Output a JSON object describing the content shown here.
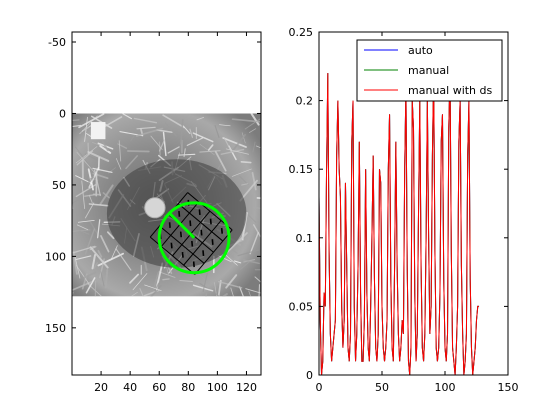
{
  "chart_data": [
    {
      "type": "image",
      "xlim": [
        0,
        130
      ],
      "ylim": [
        -57,
        183
      ],
      "y_reversed": true,
      "xticks": [
        20,
        40,
        60,
        80,
        100,
        120
      ],
      "yticks": [
        -50,
        0,
        50,
        100,
        150
      ],
      "image_extent": {
        "x": [
          0,
          130
        ],
        "y": [
          0,
          128
        ]
      },
      "overlay": {
        "grid_center": [
          82,
          84
        ],
        "grid_size": 40,
        "grid_cells": 4,
        "grid_rotation_deg": 40,
        "circle_center": [
          84,
          87
        ],
        "circle_radius": 24,
        "circle_color": "#00ff00",
        "radius_line_angle_deg": 225
      }
    },
    {
      "type": "line",
      "xlim": [
        0,
        150
      ],
      "ylim": [
        0,
        0.25
      ],
      "xticks": [
        0,
        50,
        100,
        150
      ],
      "yticks": [
        0,
        0.05,
        0.1,
        0.15,
        0.2,
        0.25
      ],
      "ytick_labels": [
        "0",
        "0.05",
        "0.1",
        "0.15",
        "0.2",
        "0.25"
      ],
      "legend_position": "top-right",
      "x": [
        0,
        1,
        2,
        3,
        4,
        5,
        6,
        7,
        8,
        9,
        10,
        11,
        12,
        13,
        14,
        15,
        16,
        17,
        18,
        19,
        20,
        21,
        22,
        23,
        24,
        25,
        26,
        27,
        28,
        29,
        30,
        31,
        32,
        33,
        34,
        35,
        36,
        37,
        38,
        39,
        40,
        41,
        42,
        43,
        44,
        45,
        46,
        47,
        48,
        49,
        50,
        51,
        52,
        53,
        54,
        55,
        56,
        57,
        58,
        59,
        60,
        61,
        62,
        63,
        64,
        65,
        66,
        67,
        68,
        69,
        70,
        71,
        72,
        73,
        74,
        75,
        76,
        77,
        78,
        79,
        80,
        81,
        82,
        83,
        84,
        85,
        86,
        87,
        88,
        89,
        90,
        91,
        92,
        93,
        94,
        95,
        96,
        97,
        98,
        99,
        100,
        101,
        102,
        103,
        104,
        105,
        106,
        107,
        108,
        109,
        110,
        111,
        112,
        113,
        114,
        115,
        116,
        117,
        118,
        119,
        120,
        121,
        122,
        123,
        124,
        125,
        126,
        127
      ],
      "series": [
        {
          "name": "auto",
          "color": "#0000ff",
          "values": [
            0.13,
            0.04,
            0.0,
            0.01,
            0.06,
            0.05,
            0.15,
            0.22,
            0.09,
            0.03,
            0.01,
            0.02,
            0.03,
            0.04,
            0.16,
            0.2,
            0.15,
            0.13,
            0.05,
            0.02,
            0.04,
            0.14,
            0.08,
            0.02,
            0.01,
            0.03,
            0.17,
            0.2,
            0.05,
            0.01,
            0.03,
            0.08,
            0.17,
            0.06,
            0.01,
            0.01,
            0.04,
            0.15,
            0.06,
            0.02,
            0.01,
            0.05,
            0.1,
            0.16,
            0.07,
            0.02,
            0.01,
            0.03,
            0.15,
            0.14,
            0.05,
            0.02,
            0.01,
            0.02,
            0.04,
            0.15,
            0.19,
            0.07,
            0.02,
            0.01,
            0.08,
            0.17,
            0.08,
            0.03,
            0.01,
            0.02,
            0.04,
            0.03,
            0.15,
            0.21,
            0.08,
            0.01,
            0.0,
            0.02,
            0.2,
            0.18,
            0.06,
            0.01,
            0.03,
            0.12,
            0.2,
            0.08,
            0.02,
            0.01,
            0.03,
            0.1,
            0.2,
            0.1,
            0.03,
            0.05,
            0.16,
            0.22,
            0.09,
            0.02,
            0.01,
            0.02,
            0.06,
            0.17,
            0.19,
            0.07,
            0.02,
            0.01,
            0.03,
            0.18,
            0.22,
            0.09,
            0.02,
            0.01,
            0.0,
            0.02,
            0.05,
            0.17,
            0.2,
            0.08,
            0.03,
            0.0,
            0.01,
            0.03,
            0.16,
            0.2,
            0.07,
            0.02,
            0.0,
            0.01,
            0.02,
            0.04,
            0.05,
            0.05
          ]
        },
        {
          "name": "manual",
          "color": "#008000",
          "values": [
            0.13,
            0.04,
            0.0,
            0.01,
            0.06,
            0.05,
            0.15,
            0.22,
            0.09,
            0.03,
            0.01,
            0.02,
            0.03,
            0.04,
            0.16,
            0.2,
            0.15,
            0.13,
            0.05,
            0.02,
            0.04,
            0.14,
            0.08,
            0.02,
            0.01,
            0.03,
            0.17,
            0.2,
            0.05,
            0.01,
            0.03,
            0.08,
            0.17,
            0.06,
            0.01,
            0.01,
            0.04,
            0.15,
            0.06,
            0.02,
            0.01,
            0.05,
            0.1,
            0.16,
            0.07,
            0.02,
            0.01,
            0.03,
            0.15,
            0.14,
            0.05,
            0.02,
            0.01,
            0.02,
            0.04,
            0.15,
            0.19,
            0.07,
            0.02,
            0.01,
            0.08,
            0.17,
            0.08,
            0.03,
            0.01,
            0.02,
            0.04,
            0.03,
            0.15,
            0.21,
            0.08,
            0.01,
            0.0,
            0.02,
            0.2,
            0.18,
            0.06,
            0.01,
            0.03,
            0.12,
            0.2,
            0.08,
            0.02,
            0.01,
            0.03,
            0.1,
            0.2,
            0.1,
            0.03,
            0.05,
            0.16,
            0.22,
            0.09,
            0.02,
            0.01,
            0.02,
            0.06,
            0.17,
            0.19,
            0.07,
            0.02,
            0.01,
            0.03,
            0.18,
            0.22,
            0.09,
            0.02,
            0.01,
            0.0,
            0.02,
            0.05,
            0.17,
            0.2,
            0.08,
            0.03,
            0.0,
            0.01,
            0.03,
            0.16,
            0.2,
            0.07,
            0.02,
            0.0,
            0.01,
            0.02,
            0.04,
            0.05,
            0.05
          ]
        },
        {
          "name": "manual with ds",
          "color": "#ff0000",
          "values": [
            0.13,
            0.04,
            0.0,
            0.01,
            0.06,
            0.05,
            0.15,
            0.22,
            0.09,
            0.03,
            0.01,
            0.02,
            0.03,
            0.04,
            0.16,
            0.2,
            0.15,
            0.13,
            0.05,
            0.02,
            0.04,
            0.14,
            0.08,
            0.02,
            0.01,
            0.03,
            0.17,
            0.2,
            0.05,
            0.01,
            0.03,
            0.08,
            0.17,
            0.06,
            0.01,
            0.01,
            0.04,
            0.15,
            0.06,
            0.02,
            0.01,
            0.05,
            0.1,
            0.16,
            0.07,
            0.02,
            0.01,
            0.03,
            0.15,
            0.14,
            0.05,
            0.02,
            0.01,
            0.02,
            0.04,
            0.15,
            0.19,
            0.07,
            0.02,
            0.01,
            0.08,
            0.17,
            0.08,
            0.03,
            0.01,
            0.02,
            0.04,
            0.03,
            0.15,
            0.21,
            0.08,
            0.01,
            0.0,
            0.02,
            0.2,
            0.18,
            0.06,
            0.01,
            0.03,
            0.12,
            0.2,
            0.08,
            0.02,
            0.01,
            0.03,
            0.1,
            0.2,
            0.1,
            0.03,
            0.05,
            0.16,
            0.22,
            0.09,
            0.02,
            0.01,
            0.02,
            0.06,
            0.17,
            0.19,
            0.07,
            0.02,
            0.01,
            0.03,
            0.18,
            0.22,
            0.09,
            0.02,
            0.01,
            0.0,
            0.02,
            0.05,
            0.17,
            0.2,
            0.08,
            0.03,
            0.0,
            0.01,
            0.03,
            0.16,
            0.2,
            0.07,
            0.02,
            0.0,
            0.01,
            0.02,
            0.04,
            0.05,
            0.05
          ]
        }
      ]
    }
  ]
}
